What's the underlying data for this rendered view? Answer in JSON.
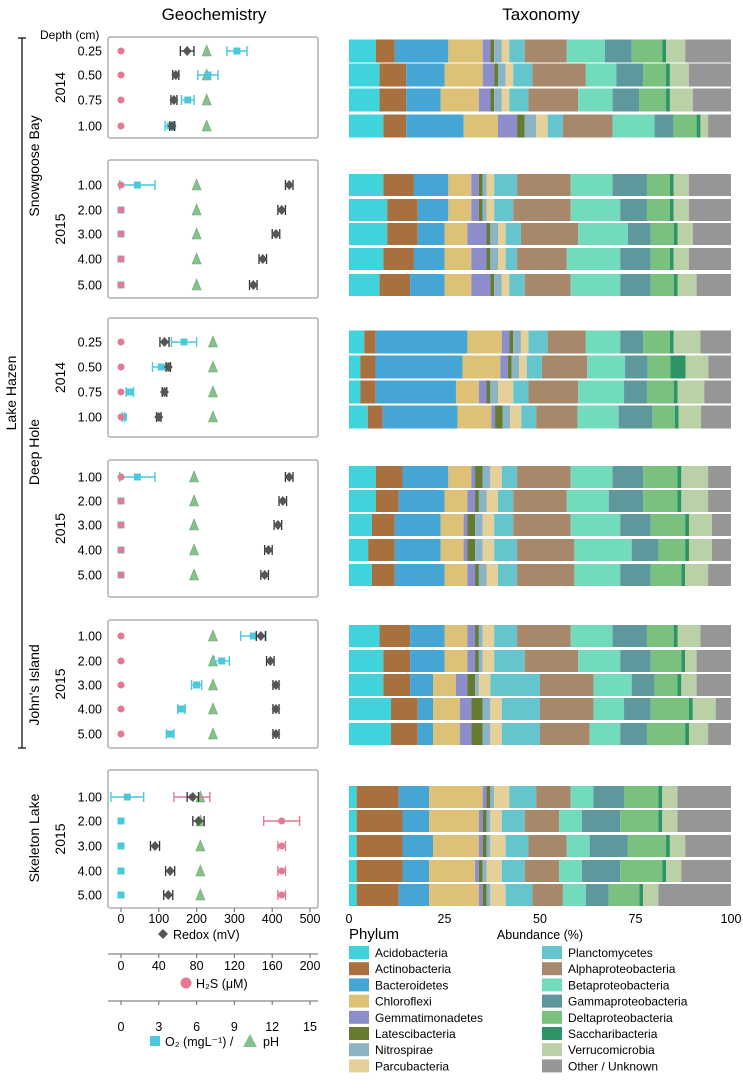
{
  "titles": {
    "left": "Geochemistry",
    "right": "Taxonomy"
  },
  "depth_header": "Depth (cm)",
  "lake_label": "Lake Hazen",
  "colors": {
    "redox": "#555555",
    "h2s": "#e27a93",
    "o2": "#4cc8dc",
    "ph": "#86c08a",
    "frame": "#888888"
  },
  "phyla": [
    {
      "name": "Acidobacteria",
      "color": "#3fd3dc"
    },
    {
      "name": "Actinobacteria",
      "color": "#a8703e"
    },
    {
      "name": "Bacteroidetes",
      "color": "#45a6d6"
    },
    {
      "name": "Chloroflexi",
      "color": "#dcc177"
    },
    {
      "name": "Gemmatimonadetes",
      "color": "#8c8ecb"
    },
    {
      "name": "Latescibacteria",
      "color": "#667a32"
    },
    {
      "name": "Nitrospirae",
      "color": "#8ab4c4"
    },
    {
      "name": "Parcubacteria",
      "color": "#e6d09a"
    },
    {
      "name": "Planctomycetes",
      "color": "#64c5cd"
    },
    {
      "name": "Alphaproteobacteria",
      "color": "#a8886a"
    },
    {
      "name": "Betaproteobacteria",
      "color": "#72dbbc"
    },
    {
      "name": "Gammaproteobacteria",
      "color": "#5e979c"
    },
    {
      "name": "Deltaproteobacteria",
      "color": "#7ac07e"
    },
    {
      "name": "Saccharibacteria",
      "color": "#2e9466"
    },
    {
      "name": "Verrucomicrobia",
      "color": "#bad0a6"
    },
    {
      "name": "Other / Unknown",
      "color": "#969696"
    }
  ],
  "legend": {
    "title": "Phylum"
  },
  "axes": {
    "redox": {
      "label": "Redox (mV)",
      "ticks": [
        "0",
        "100",
        "200",
        "300",
        "400",
        "500"
      ],
      "range": [
        0,
        500
      ]
    },
    "h2s": {
      "label": "H₂S (μM)",
      "ticks": [
        "0",
        "40",
        "80",
        "120",
        "160",
        "200"
      ],
      "range": [
        0,
        200
      ]
    },
    "o2ph": {
      "label_o2": "O₂ (mgL⁻¹) /",
      "label_ph": "pH",
      "ticks": [
        "0",
        "3",
        "6",
        "9",
        "12",
        "15"
      ],
      "range": [
        0,
        15
      ]
    },
    "abundance": {
      "label": "Abundance (%)",
      "ticks": [
        "0",
        "25",
        "50",
        "75",
        "100"
      ],
      "range": [
        0,
        100
      ]
    }
  },
  "chart_data": {
    "type": "composite: dot-errorbar profiles + 100% stacked bar",
    "title": "Geochemistry / Taxonomy",
    "panels": [
      {
        "site": "Snowgoose Bay",
        "year": "2014",
        "depths": [
          "0.25",
          "0.50",
          "0.75",
          "1.00"
        ],
        "redox": [
          [
            175,
            18
          ],
          [
            145,
            8
          ],
          [
            140,
            8
          ],
          [
            135,
            6
          ]
        ],
        "h2s": [
          [
            0,
            0
          ],
          [
            0,
            0
          ],
          [
            0,
            0
          ],
          [
            0,
            0
          ]
        ],
        "o2": [
          [
            9.2,
            0.8
          ],
          [
            6.9,
            0.8
          ],
          [
            5.3,
            0.5
          ],
          [
            3.9,
            0.4
          ]
        ],
        "ph": [
          6.8,
          6.8,
          6.8,
          6.8
        ],
        "taxa": [
          [
            7,
            5,
            14,
            9,
            2,
            1,
            2,
            2,
            4,
            11,
            10,
            7,
            8,
            1,
            5,
            12
          ],
          [
            8,
            7,
            10,
            10,
            3,
            1,
            2,
            2,
            5,
            14,
            8,
            7,
            6,
            1,
            5,
            11
          ],
          [
            8,
            7,
            9,
            10,
            3,
            1,
            2,
            2,
            5,
            13,
            9,
            7,
            7,
            1,
            6,
            10
          ],
          [
            9,
            6,
            15,
            9,
            5,
            2,
            3,
            3,
            4,
            13,
            11,
            5,
            6,
            1,
            2,
            6
          ]
        ]
      },
      {
        "site": "Snowgoose Bay",
        "year": "2015",
        "depths": [
          "1.00",
          "2.00",
          "3.00",
          "4.00",
          "5.00"
        ],
        "redox": [
          [
            445,
            10
          ],
          [
            425,
            10
          ],
          [
            410,
            10
          ],
          [
            375,
            10
          ],
          [
            350,
            10
          ]
        ],
        "h2s": [
          [
            0,
            0
          ],
          [
            0,
            0
          ],
          [
            0,
            0
          ],
          [
            0,
            0
          ],
          [
            0,
            0
          ]
        ],
        "o2": [
          [
            1.3,
            1.4
          ],
          [
            0,
            0
          ],
          [
            0,
            0
          ],
          [
            0,
            0
          ],
          [
            0,
            0
          ]
        ],
        "ph": [
          6.0,
          6.0,
          6.0,
          6.0,
          6.0
        ],
        "taxa": [
          [
            9,
            8,
            9,
            6,
            2,
            1,
            1,
            2,
            6,
            14,
            11,
            9,
            6,
            1,
            4,
            11
          ],
          [
            10,
            8,
            8,
            6,
            2,
            1,
            1,
            2,
            5,
            15,
            13,
            7,
            6,
            1,
            4,
            11
          ],
          [
            10,
            8,
            7,
            6,
            5,
            1,
            2,
            2,
            4,
            15,
            13,
            6,
            6,
            1,
            4,
            10
          ],
          [
            9,
            8,
            8,
            7,
            4,
            1,
            2,
            2,
            3,
            13,
            14,
            8,
            5,
            1,
            4,
            11
          ],
          [
            8,
            8,
            9,
            7,
            5,
            1,
            2,
            2,
            4,
            12,
            13,
            8,
            6,
            1,
            5,
            9
          ]
        ]
      },
      {
        "site": "Deep Hole",
        "year": "2014",
        "depths": [
          "0.25",
          "0.50",
          "0.75",
          "1.00"
        ],
        "redox": [
          [
            115,
            12
          ],
          [
            125,
            6
          ],
          [
            115,
            6
          ],
          [
            100,
            6
          ]
        ],
        "h2s": [
          [
            0,
            0
          ],
          [
            0,
            0
          ],
          [
            0,
            0
          ],
          [
            0,
            0
          ]
        ],
        "o2": [
          [
            5.0,
            1.0
          ],
          [
            3.2,
            0.7
          ],
          [
            0.7,
            0.3
          ],
          [
            0.2,
            0.1
          ]
        ],
        "ph": [
          7.3,
          7.3,
          7.3,
          7.3
        ],
        "taxa": [
          [
            4,
            3,
            24,
            9,
            2,
            1,
            2,
            2,
            5,
            10,
            9,
            6,
            7,
            1,
            7,
            8
          ],
          [
            3,
            4,
            23,
            10,
            2,
            1,
            2,
            2,
            4,
            12,
            10,
            6,
            6,
            4,
            6,
            6
          ],
          [
            3,
            4,
            21,
            6,
            2,
            1,
            2,
            4,
            4,
            13,
            12,
            6,
            7,
            1,
            7,
            7
          ],
          [
            5,
            4,
            20,
            9,
            1,
            2,
            2,
            3,
            4,
            11,
            11,
            9,
            6,
            1,
            6,
            8
          ]
        ]
      },
      {
        "site": "Deep Hole",
        "year": "2015",
        "depths": [
          "1.00",
          "2.00",
          "3.00",
          "4.00",
          "5.00"
        ],
        "redox": [
          [
            445,
            10
          ],
          [
            428,
            10
          ],
          [
            415,
            10
          ],
          [
            390,
            10
          ],
          [
            380,
            10
          ]
        ],
        "h2s": [
          [
            0,
            0
          ],
          [
            0,
            0
          ],
          [
            0,
            0
          ],
          [
            0,
            0
          ],
          [
            0,
            0
          ]
        ],
        "o2": [
          [
            1.3,
            1.4
          ],
          [
            0,
            0
          ],
          [
            0,
            0
          ],
          [
            0,
            0
          ],
          [
            0,
            0
          ]
        ],
        "ph": [
          5.8,
          5.8,
          5.8,
          5.8,
          5.8
        ],
        "taxa": [
          [
            7,
            7,
            12,
            6,
            1,
            2,
            2,
            3,
            4,
            14,
            11,
            8,
            9,
            1,
            7,
            6
          ],
          [
            7,
            6,
            12,
            6,
            2,
            1,
            2,
            3,
            4,
            14,
            11,
            9,
            9,
            1,
            7,
            6
          ],
          [
            6,
            6,
            12,
            6,
            1,
            2,
            2,
            3,
            5,
            15,
            13,
            8,
            9,
            1,
            6,
            5
          ],
          [
            5,
            7,
            12,
            6,
            1,
            2,
            2,
            3,
            6,
            15,
            15,
            7,
            7,
            1,
            6,
            5
          ],
          [
            6,
            6,
            13,
            6,
            2,
            1,
            2,
            3,
            5,
            15,
            12,
            8,
            8,
            1,
            6,
            6
          ]
        ]
      },
      {
        "site": "John's Island",
        "year": "2015",
        "depths": [
          "1.00",
          "2.00",
          "3.00",
          "4.00",
          "5.00"
        ],
        "redox": [
          [
            370,
            12
          ],
          [
            395,
            10
          ],
          [
            410,
            8
          ],
          [
            410,
            8
          ],
          [
            410,
            8
          ]
        ],
        "h2s": [
          [
            0,
            0
          ],
          [
            0,
            0
          ],
          [
            0,
            0
          ],
          [
            0,
            0
          ],
          [
            0,
            0
          ]
        ],
        "o2": [
          [
            10.5,
            1.0
          ],
          [
            8.0,
            0.6
          ],
          [
            6.0,
            0.4
          ],
          [
            4.8,
            0.3
          ],
          [
            3.9,
            0.3
          ]
        ],
        "ph": [
          7.3,
          7.3,
          7.3,
          7.3,
          7.3
        ],
        "taxa": [
          [
            8,
            8,
            9,
            6,
            2,
            1,
            1,
            3,
            6,
            14,
            11,
            9,
            7,
            1,
            6,
            8
          ],
          [
            9,
            7,
            9,
            6,
            2,
            1,
            1,
            3,
            8,
            14,
            11,
            8,
            8,
            1,
            3,
            9
          ],
          [
            9,
            7,
            6,
            6,
            3,
            2,
            1,
            3,
            13,
            14,
            10,
            6,
            6,
            1,
            4,
            9
          ],
          [
            11,
            7,
            4,
            7,
            3,
            3,
            2,
            3,
            10,
            14,
            8,
            7,
            10,
            1,
            6,
            4
          ],
          [
            11,
            7,
            4,
            7,
            3,
            3,
            2,
            3,
            10,
            13,
            8,
            7,
            10,
            1,
            5,
            6
          ]
        ]
      },
      {
        "site": "Skeleton Lake",
        "year": "2015",
        "depths": [
          "1.00",
          "2.00",
          "3.00",
          "4.00",
          "5.00"
        ],
        "redox": [
          [
            190,
            15
          ],
          [
            205,
            15
          ],
          [
            90,
            12
          ],
          [
            130,
            12
          ],
          [
            125,
            12
          ]
        ],
        "h2s": [
          [
            75,
            19
          ],
          [
            170,
            19
          ],
          [
            170,
            4
          ],
          [
            170,
            4
          ],
          [
            170,
            4
          ]
        ],
        "o2": [
          [
            0.5,
            1.3
          ],
          [
            0,
            0
          ],
          [
            0,
            0
          ],
          [
            0,
            0
          ],
          [
            0,
            0
          ]
        ],
        "ph": [
          6.3,
          6.3,
          6.3,
          6.3,
          6.3
        ],
        "taxa": [
          [
            2,
            11,
            8,
            14,
            1,
            1,
            1,
            4,
            7,
            9,
            6,
            8,
            9,
            1,
            4,
            14
          ],
          [
            2,
            12,
            7,
            13,
            1,
            1,
            1,
            3,
            6,
            9,
            6,
            10,
            10,
            1,
            4,
            14
          ],
          [
            2,
            12,
            8,
            12,
            1,
            1,
            1,
            4,
            6,
            10,
            6,
            10,
            10,
            1,
            4,
            12
          ],
          [
            2,
            12,
            7,
            12,
            1,
            1,
            1,
            4,
            6,
            9,
            6,
            10,
            11,
            1,
            4,
            13
          ],
          [
            2,
            11,
            8,
            13,
            1,
            1,
            1,
            4,
            7,
            8,
            6,
            6,
            8,
            1,
            4,
            19
          ]
        ]
      }
    ]
  }
}
